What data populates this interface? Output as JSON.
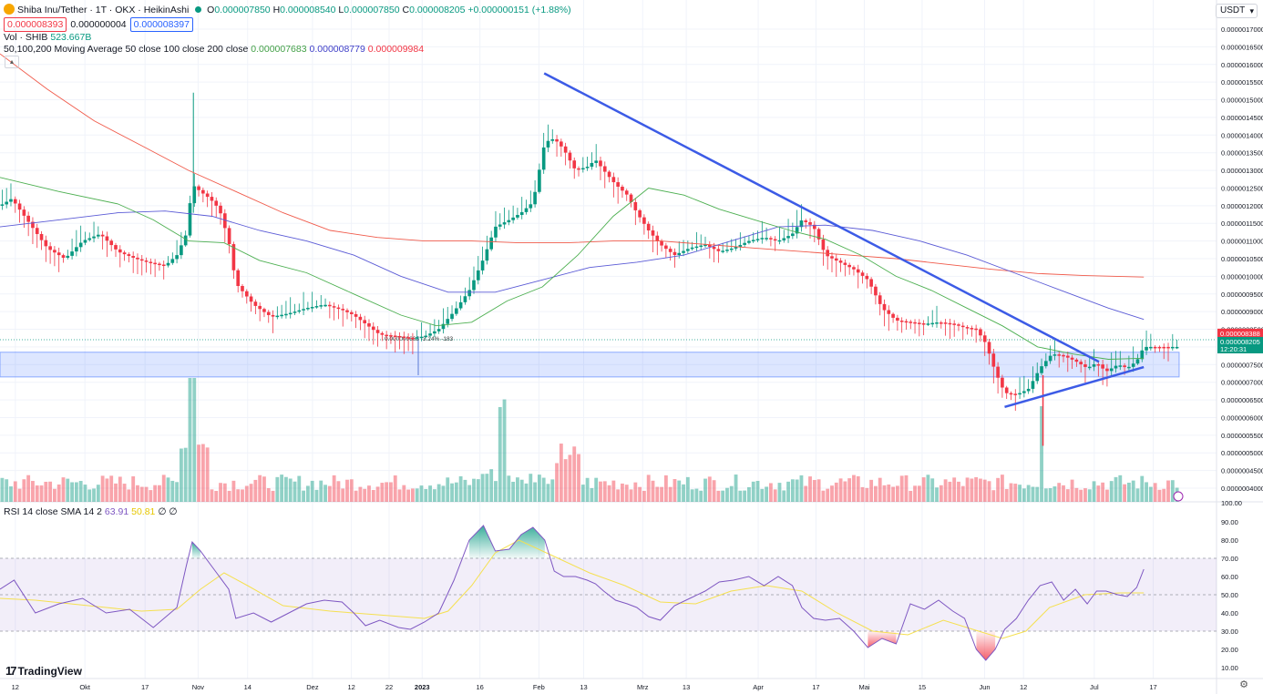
{
  "header": {
    "symbol": "Shiba Inu/Tether · 1T · OKX · HeikinAshi",
    "open_label": "O",
    "open": "0.000007850",
    "high_label": "H",
    "high": "0.000008540",
    "low_label": "L",
    "low": "0.000007850",
    "close_label": "C",
    "close": "0.000008205",
    "change": "+0.000000151 (+1.88%)",
    "bid": "0.000008393",
    "spread": "0.000000004",
    "ask": "0.000008397",
    "vol_label": "Vol · SHIB",
    "vol_value": "523.667B",
    "ma_label": "50,100,200 Moving Average 50 close 100 close 200 close",
    "ma50": "0.000007683",
    "ma100": "0.000008779",
    "ma200": "0.000009984",
    "rsi_label": "RSI 14 close SMA 14 2",
    "rsi_value": "63.91",
    "rsi_sma": "50.81",
    "rsi_extra": "∅ ∅",
    "currency": "USDT",
    "logo": "TradingView"
  },
  "colors": {
    "up": "#089981",
    "down": "#f23645",
    "ma50": "#4caf50",
    "ma100": "#5b5bd6",
    "ma200": "#f05a4a",
    "rsi": "#7e57c2",
    "rsi_sma": "#f5e050",
    "trend": "#3c5be6",
    "zone": "#2962ff"
  },
  "chart_data": {
    "type": "candlestick",
    "instrument": "Shiba Inu/Tether",
    "price_axis": {
      "ticks": [
        "0.0000017000",
        "0.0000016500",
        "0.0000016000",
        "0.0000015500",
        "0.0000015000",
        "0.0000014500",
        "0.0000014000",
        "0.0000013500",
        "0.0000013000",
        "0.0000012500",
        "0.0000012000",
        "0.0000011500",
        "0.0000011000",
        "0.0000010500",
        "0.0000010000",
        "0.0000009500",
        "0.0000009000",
        "0.0000008500",
        "0.0000008000",
        "0.0000007500",
        "0.0000007000",
        "0.0000006500",
        "0.0000006000",
        "0.0000005500",
        "0.0000005000",
        "0.0000004500",
        "0.0000004000"
      ],
      "price_tags": [
        {
          "value": "0.000008388",
          "color": "#f23645"
        },
        {
          "value": "0.000008205",
          "color": "#089981"
        },
        {
          "value": "12:20:31",
          "color": "#089981"
        }
      ]
    },
    "time_axis": {
      "labels": [
        "12",
        "Okt",
        "17",
        "Nov",
        "14",
        "Dez",
        "12",
        "22",
        "2023",
        "16",
        "Feb",
        "13",
        "Mrz",
        "13",
        "Apr",
        "17",
        "Mai",
        "15",
        "Jun",
        "12",
        "Jul",
        "17"
      ],
      "label_fractions": [
        0.013,
        0.072,
        0.123,
        0.168,
        0.21,
        0.265,
        0.298,
        0.33,
        0.358,
        0.407,
        0.457,
        0.495,
        0.545,
        0.582,
        0.643,
        0.692,
        0.733,
        0.782,
        0.835,
        0.868,
        0.928,
        0.978
      ]
    },
    "close_path": [
      [
        0,
        1.2
      ],
      [
        0.01,
        1.22
      ],
      [
        0.025,
        1.15
      ],
      [
        0.04,
        1.08
      ],
      [
        0.055,
        1.05
      ],
      [
        0.07,
        1.1
      ],
      [
        0.085,
        1.12
      ],
      [
        0.1,
        1.07
      ],
      [
        0.115,
        1.05
      ],
      [
        0.125,
        1.04
      ],
      [
        0.14,
        1.03
      ],
      [
        0.15,
        1.06
      ],
      [
        0.158,
        1.12
      ],
      [
        0.163,
        1.26
      ],
      [
        0.17,
        1.24
      ],
      [
        0.178,
        1.22
      ],
      [
        0.186,
        1.19
      ],
      [
        0.194,
        1.1
      ],
      [
        0.2,
        0.98
      ],
      [
        0.215,
        0.92
      ],
      [
        0.23,
        0.885
      ],
      [
        0.245,
        0.895
      ],
      [
        0.26,
        0.91
      ],
      [
        0.275,
        0.92
      ],
      [
        0.29,
        0.905
      ],
      [
        0.3,
        0.89
      ],
      [
        0.31,
        0.865
      ],
      [
        0.322,
        0.835
      ],
      [
        0.338,
        0.83
      ],
      [
        0.348,
        0.825
      ],
      [
        0.36,
        0.83
      ],
      [
        0.372,
        0.85
      ],
      [
        0.385,
        0.9
      ],
      [
        0.398,
        0.96
      ],
      [
        0.41,
        1.05
      ],
      [
        0.42,
        1.14
      ],
      [
        0.432,
        1.16
      ],
      [
        0.442,
        1.18
      ],
      [
        0.452,
        1.21
      ],
      [
        0.462,
        1.38
      ],
      [
        0.47,
        1.39
      ],
      [
        0.478,
        1.36
      ],
      [
        0.488,
        1.3
      ],
      [
        0.498,
        1.31
      ],
      [
        0.505,
        1.33
      ],
      [
        0.512,
        1.3
      ],
      [
        0.522,
        1.26
      ],
      [
        0.532,
        1.23
      ],
      [
        0.54,
        1.18
      ],
      [
        0.55,
        1.13
      ],
      [
        0.56,
        1.09
      ],
      [
        0.572,
        1.06
      ],
      [
        0.585,
        1.08
      ],
      [
        0.598,
        1.09
      ],
      [
        0.61,
        1.07
      ],
      [
        0.622,
        1.08
      ],
      [
        0.635,
        1.1
      ],
      [
        0.648,
        1.11
      ],
      [
        0.66,
        1.1
      ],
      [
        0.672,
        1.12
      ],
      [
        0.68,
        1.16
      ],
      [
        0.69,
        1.14
      ],
      [
        0.7,
        1.06
      ],
      [
        0.712,
        1.04
      ],
      [
        0.724,
        1.02
      ],
      [
        0.736,
        0.99
      ],
      [
        0.748,
        0.91
      ],
      [
        0.76,
        0.875
      ],
      [
        0.772,
        0.87
      ],
      [
        0.784,
        0.865
      ],
      [
        0.796,
        0.87
      ],
      [
        0.808,
        0.865
      ],
      [
        0.818,
        0.855
      ],
      [
        0.828,
        0.85
      ],
      [
        0.836,
        0.81
      ],
      [
        0.844,
        0.73
      ],
      [
        0.852,
        0.67
      ],
      [
        0.862,
        0.665
      ],
      [
        0.872,
        0.68
      ],
      [
        0.882,
        0.74
      ],
      [
        0.892,
        0.78
      ],
      [
        0.902,
        0.775
      ],
      [
        0.912,
        0.76
      ],
      [
        0.922,
        0.74
      ],
      [
        0.93,
        0.755
      ],
      [
        0.938,
        0.73
      ],
      [
        0.948,
        0.75
      ],
      [
        0.956,
        0.74
      ],
      [
        0.964,
        0.76
      ],
      [
        0.97,
        0.8
      ]
    ],
    "moving_averages": {
      "ma50": [
        [
          0,
          1.28
        ],
        [
          0.05,
          1.24
        ],
        [
          0.1,
          1.205
        ],
        [
          0.13,
          1.16
        ],
        [
          0.16,
          1.1
        ],
        [
          0.19,
          1.095
        ],
        [
          0.22,
          1.045
        ],
        [
          0.26,
          1.01
        ],
        [
          0.3,
          0.95
        ],
        [
          0.34,
          0.89
        ],
        [
          0.37,
          0.86
        ],
        [
          0.4,
          0.87
        ],
        [
          0.43,
          0.93
        ],
        [
          0.46,
          0.97
        ],
        [
          0.49,
          1.06
        ],
        [
          0.52,
          1.17
        ],
        [
          0.55,
          1.25
        ],
        [
          0.58,
          1.23
        ],
        [
          0.61,
          1.19
        ],
        [
          0.64,
          1.16
        ],
        [
          0.67,
          1.13
        ],
        [
          0.7,
          1.105
        ],
        [
          0.73,
          1.06
        ],
        [
          0.76,
          1.0
        ],
        [
          0.79,
          0.96
        ],
        [
          0.82,
          0.91
        ],
        [
          0.85,
          0.86
        ],
        [
          0.88,
          0.8
        ],
        [
          0.91,
          0.78
        ],
        [
          0.94,
          0.765
        ],
        [
          0.97,
          0.768
        ]
      ],
      "ma100": [
        [
          0,
          1.14
        ],
        [
          0.05,
          1.16
        ],
        [
          0.1,
          1.18
        ],
        [
          0.14,
          1.185
        ],
        [
          0.18,
          1.17
        ],
        [
          0.22,
          1.13
        ],
        [
          0.26,
          1.1
        ],
        [
          0.3,
          1.06
        ],
        [
          0.34,
          1.0
        ],
        [
          0.38,
          0.955
        ],
        [
          0.42,
          0.955
        ],
        [
          0.46,
          0.99
        ],
        [
          0.5,
          1.025
        ],
        [
          0.54,
          1.04
        ],
        [
          0.58,
          1.06
        ],
        [
          0.62,
          1.1
        ],
        [
          0.66,
          1.14
        ],
        [
          0.7,
          1.145
        ],
        [
          0.74,
          1.13
        ],
        [
          0.78,
          1.1
        ],
        [
          0.82,
          1.06
        ],
        [
          0.86,
          1.01
        ],
        [
          0.9,
          0.96
        ],
        [
          0.94,
          0.91
        ],
        [
          0.97,
          0.878
        ]
      ],
      "ma200": [
        [
          0,
          1.63
        ],
        [
          0.04,
          1.53
        ],
        [
          0.08,
          1.44
        ],
        [
          0.12,
          1.37
        ],
        [
          0.16,
          1.3
        ],
        [
          0.2,
          1.24
        ],
        [
          0.24,
          1.18
        ],
        [
          0.28,
          1.13
        ],
        [
          0.32,
          1.11
        ],
        [
          0.36,
          1.1
        ],
        [
          0.4,
          1.1
        ],
        [
          0.44,
          1.095
        ],
        [
          0.48,
          1.095
        ],
        [
          0.52,
          1.1
        ],
        [
          0.56,
          1.1
        ],
        [
          0.6,
          1.09
        ],
        [
          0.64,
          1.08
        ],
        [
          0.68,
          1.07
        ],
        [
          0.72,
          1.06
        ],
        [
          0.76,
          1.05
        ],
        [
          0.8,
          1.035
        ],
        [
          0.84,
          1.02
        ],
        [
          0.88,
          1.008
        ],
        [
          0.92,
          1.002
        ],
        [
          0.97,
          0.998
        ]
      ]
    },
    "annotations": {
      "upper_trendline": [
        [
          0.4615,
          1.575
        ],
        [
          0.932,
          0.758
        ]
      ],
      "lower_trendline": [
        [
          0.852,
          0.63
        ],
        [
          0.97,
          0.743
        ]
      ],
      "support_zone": [
        0.715,
        0.785
      ],
      "zone_label": "0.000000663 -3.24% -183"
    },
    "volume_axis_label": "100.00",
    "rsi": {
      "ticks": [
        "90.00",
        "80.00",
        "70.00",
        "60.00",
        "50.00",
        "40.00",
        "30.00",
        "20.00",
        "10.00"
      ],
      "upper": 70,
      "middle": 50,
      "lower": 30,
      "values": [
        [
          0,
          53
        ],
        [
          0.012,
          58
        ],
        [
          0.03,
          40
        ],
        [
          0.05,
          45
        ],
        [
          0.07,
          48
        ],
        [
          0.09,
          40
        ],
        [
          0.11,
          42
        ],
        [
          0.13,
          32
        ],
        [
          0.15,
          43
        ],
        [
          0.158,
          66
        ],
        [
          0.163,
          79
        ],
        [
          0.17,
          74
        ],
        [
          0.178,
          67
        ],
        [
          0.186,
          60
        ],
        [
          0.194,
          53
        ],
        [
          0.2,
          37
        ],
        [
          0.215,
          40
        ],
        [
          0.23,
          35
        ],
        [
          0.245,
          40
        ],
        [
          0.26,
          45
        ],
        [
          0.275,
          47
        ],
        [
          0.29,
          46
        ],
        [
          0.3,
          40
        ],
        [
          0.31,
          33
        ],
        [
          0.322,
          36
        ],
        [
          0.338,
          32
        ],
        [
          0.348,
          31
        ],
        [
          0.36,
          35
        ],
        [
          0.372,
          40
        ],
        [
          0.385,
          58
        ],
        [
          0.398,
          80
        ],
        [
          0.41,
          88
        ],
        [
          0.42,
          74
        ],
        [
          0.432,
          75
        ],
        [
          0.442,
          83
        ],
        [
          0.452,
          87
        ],
        [
          0.462,
          80
        ],
        [
          0.47,
          63
        ],
        [
          0.478,
          60
        ],
        [
          0.488,
          60
        ],
        [
          0.498,
          58
        ],
        [
          0.505,
          56
        ],
        [
          0.512,
          52
        ],
        [
          0.522,
          47
        ],
        [
          0.532,
          45
        ],
        [
          0.54,
          43
        ],
        [
          0.55,
          38
        ],
        [
          0.56,
          36
        ],
        [
          0.572,
          44
        ],
        [
          0.585,
          48
        ],
        [
          0.598,
          52
        ],
        [
          0.61,
          57
        ],
        [
          0.622,
          58
        ],
        [
          0.635,
          60
        ],
        [
          0.648,
          55
        ],
        [
          0.66,
          60
        ],
        [
          0.672,
          55
        ],
        [
          0.68,
          43
        ],
        [
          0.69,
          37
        ],
        [
          0.7,
          36
        ],
        [
          0.712,
          37
        ],
        [
          0.724,
          30
        ],
        [
          0.736,
          21
        ],
        [
          0.748,
          26
        ],
        [
          0.76,
          23
        ],
        [
          0.772,
          45
        ],
        [
          0.784,
          42
        ],
        [
          0.796,
          47
        ],
        [
          0.808,
          41
        ],
        [
          0.818,
          37
        ],
        [
          0.828,
          20
        ],
        [
          0.836,
          14
        ],
        [
          0.844,
          20
        ],
        [
          0.852,
          31
        ],
        [
          0.862,
          37
        ],
        [
          0.872,
          47
        ],
        [
          0.882,
          55
        ],
        [
          0.892,
          57
        ],
        [
          0.902,
          47
        ],
        [
          0.912,
          53
        ],
        [
          0.922,
          45
        ],
        [
          0.93,
          52
        ],
        [
          0.938,
          52
        ],
        [
          0.948,
          50
        ],
        [
          0.956,
          49
        ],
        [
          0.964,
          54
        ],
        [
          0.97,
          64
        ]
      ],
      "sma": [
        [
          0,
          48
        ],
        [
          0.03,
          47
        ],
        [
          0.06,
          45
        ],
        [
          0.09,
          43
        ],
        [
          0.12,
          41
        ],
        [
          0.15,
          42
        ],
        [
          0.17,
          53
        ],
        [
          0.19,
          62
        ],
        [
          0.21,
          55
        ],
        [
          0.24,
          44
        ],
        [
          0.28,
          41
        ],
        [
          0.32,
          39
        ],
        [
          0.36,
          37
        ],
        [
          0.38,
          41
        ],
        [
          0.4,
          55
        ],
        [
          0.42,
          73
        ],
        [
          0.44,
          80
        ],
        [
          0.47,
          71
        ],
        [
          0.5,
          62
        ],
        [
          0.53,
          55
        ],
        [
          0.56,
          46
        ],
        [
          0.59,
          45
        ],
        [
          0.62,
          52
        ],
        [
          0.65,
          55
        ],
        [
          0.68,
          52
        ],
        [
          0.71,
          40
        ],
        [
          0.74,
          30
        ],
        [
          0.77,
          28
        ],
        [
          0.8,
          36
        ],
        [
          0.83,
          30
        ],
        [
          0.85,
          26
        ],
        [
          0.87,
          30
        ],
        [
          0.89,
          43
        ],
        [
          0.92,
          50
        ],
        [
          0.95,
          51
        ],
        [
          0.97,
          51
        ]
      ]
    }
  }
}
